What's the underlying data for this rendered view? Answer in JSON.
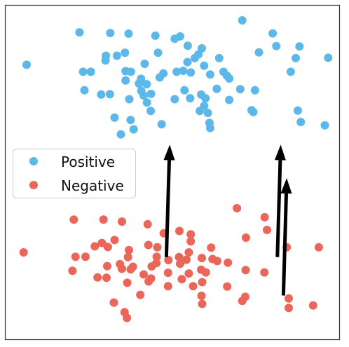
{
  "chart_data": {
    "type": "scatter",
    "xlim": [
      0,
      1
    ],
    "ylim": [
      0,
      1
    ],
    "grid": false,
    "legend": {
      "placement": "center-left",
      "entries": [
        "Positive",
        "Negative"
      ]
    },
    "colors": {
      "Positive": "#5DB8EA",
      "Negative": "#EA6659",
      "arrow": "#000000",
      "frame": "#333333"
    },
    "series": [
      {
        "name": "Positive",
        "points": [
          [
            0.222,
            0.919
          ],
          [
            0.314,
            0.917
          ],
          [
            0.369,
            0.915
          ],
          [
            0.449,
            0.909
          ],
          [
            0.507,
            0.9
          ],
          [
            0.523,
            0.907
          ],
          [
            0.709,
            0.955
          ],
          [
            0.8,
            0.916
          ],
          [
            0.546,
            0.879
          ],
          [
            0.588,
            0.871
          ],
          [
            0.811,
            0.878
          ],
          [
            0.88,
            0.877
          ],
          [
            0.759,
            0.859
          ],
          [
            0.358,
            0.858
          ],
          [
            0.457,
            0.858
          ],
          [
            0.578,
            0.853
          ],
          [
            0.301,
            0.849
          ],
          [
            0.334,
            0.849
          ],
          [
            0.567,
            0.842
          ],
          [
            0.64,
            0.842
          ],
          [
            0.869,
            0.842
          ],
          [
            0.966,
            0.843
          ],
          [
            0.3,
            0.835
          ],
          [
            0.545,
            0.83
          ],
          [
            0.417,
            0.825
          ],
          [
            0.595,
            0.819
          ],
          [
            0.064,
            0.822
          ],
          [
            0.233,
            0.801
          ],
          [
            0.256,
            0.801
          ],
          [
            0.36,
            0.803
          ],
          [
            0.513,
            0.801
          ],
          [
            0.532,
            0.804
          ],
          [
            0.555,
            0.799
          ],
          [
            0.653,
            0.801
          ],
          [
            0.854,
            0.801
          ],
          [
            0.376,
            0.801
          ],
          [
            0.473,
            0.796
          ],
          [
            0.613,
            0.793
          ],
          [
            0.663,
            0.789
          ],
          [
            0.462,
            0.784
          ],
          [
            0.406,
            0.78
          ],
          [
            0.67,
            0.781
          ],
          [
            0.36,
            0.775
          ],
          [
            0.237,
            0.746
          ],
          [
            0.4,
            0.766
          ],
          [
            0.423,
            0.764
          ],
          [
            0.633,
            0.75
          ],
          [
            0.703,
            0.749
          ],
          [
            0.747,
            0.746
          ],
          [
            0.287,
            0.733
          ],
          [
            0.313,
            0.734
          ],
          [
            0.407,
            0.744
          ],
          [
            0.436,
            0.735
          ],
          [
            0.536,
            0.746
          ],
          [
            0.586,
            0.733
          ],
          [
            0.414,
            0.73
          ],
          [
            0.371,
            0.719
          ],
          [
            0.553,
            0.722
          ],
          [
            0.599,
            0.722
          ],
          [
            0.507,
            0.719
          ],
          [
            0.67,
            0.717
          ],
          [
            0.424,
            0.709
          ],
          [
            0.595,
            0.699
          ],
          [
            0.435,
            0.684
          ],
          [
            0.582,
            0.684
          ],
          [
            0.737,
            0.686
          ],
          [
            0.875,
            0.685
          ],
          [
            0.606,
            0.678
          ],
          [
            0.742,
            0.681
          ],
          [
            0.327,
            0.664
          ],
          [
            0.375,
            0.657
          ],
          [
            0.384,
            0.629
          ],
          [
            0.468,
            0.644
          ],
          [
            0.611,
            0.648
          ],
          [
            0.884,
            0.651
          ],
          [
            0.956,
            0.641
          ],
          [
            0.346,
            0.614
          ],
          [
            0.613,
            0.633
          ]
        ]
      },
      {
        "name": "Negative",
        "points": [
          [
            0.205,
            0.359
          ],
          [
            0.693,
            0.393
          ],
          [
            0.294,
            0.359
          ],
          [
            0.349,
            0.353
          ],
          [
            0.776,
            0.366
          ],
          [
            0.426,
            0.345
          ],
          [
            0.783,
            0.328
          ],
          [
            0.521,
            0.325
          ],
          [
            0.474,
            0.318
          ],
          [
            0.555,
            0.315
          ],
          [
            0.72,
            0.305
          ],
          [
            0.327,
            0.298
          ],
          [
            0.289,
            0.289
          ],
          [
            0.268,
            0.279
          ],
          [
            0.307,
            0.277
          ],
          [
            0.555,
            0.294
          ],
          [
            0.428,
            0.283
          ],
          [
            0.455,
            0.276
          ],
          [
            0.616,
            0.275
          ],
          [
            0.938,
            0.276
          ],
          [
            0.842,
            0.276
          ],
          [
            0.37,
            0.268
          ],
          [
            0.549,
            0.261
          ],
          [
            0.453,
            0.248
          ],
          [
            0.055,
            0.261
          ],
          [
            0.21,
            0.248
          ],
          [
            0.24,
            0.248
          ],
          [
            0.367,
            0.247
          ],
          [
            0.52,
            0.247
          ],
          [
            0.588,
            0.244
          ],
          [
            0.62,
            0.241
          ],
          [
            0.488,
            0.238
          ],
          [
            0.542,
            0.239
          ],
          [
            0.634,
            0.235
          ],
          [
            0.523,
            0.227
          ],
          [
            0.343,
            0.226
          ],
          [
            0.452,
            0.229
          ],
          [
            0.666,
            0.23
          ],
          [
            0.305,
            0.22
          ],
          [
            0.382,
            0.218
          ],
          [
            0.438,
            0.219
          ],
          [
            0.349,
            0.212
          ],
          [
            0.201,
            0.206
          ],
          [
            0.375,
            0.21
          ],
          [
            0.586,
            0.209
          ],
          [
            0.487,
            0.2
          ],
          [
            0.549,
            0.198
          ],
          [
            0.6,
            0.201
          ],
          [
            0.775,
            0.201
          ],
          [
            0.719,
            0.208
          ],
          [
            0.414,
            0.195
          ],
          [
            0.436,
            0.183
          ],
          [
            0.276,
            0.186
          ],
          [
            0.303,
            0.185
          ],
          [
            0.528,
            0.181
          ],
          [
            0.429,
            0.174
          ],
          [
            0.589,
            0.172
          ],
          [
            0.365,
            0.17
          ],
          [
            0.487,
            0.16
          ],
          [
            0.562,
            0.16
          ],
          [
            0.664,
            0.159
          ],
          [
            0.404,
            0.134
          ],
          [
            0.587,
            0.131
          ],
          [
            0.718,
            0.128
          ],
          [
            0.848,
            0.123
          ],
          [
            0.325,
            0.111
          ],
          [
            0.589,
            0.107
          ],
          [
            0.709,
            0.116
          ],
          [
            0.921,
            0.102
          ],
          [
            0.848,
            0.095
          ],
          [
            0.357,
            0.082
          ],
          [
            0.364,
            0.065
          ]
        ]
      }
    ],
    "arrows": [
      {
        "from": [
          0.482,
          0.247
        ],
        "to": [
          0.492,
          0.583
        ]
      },
      {
        "from": [
          0.814,
          0.247
        ],
        "to": [
          0.824,
          0.583
        ]
      },
      {
        "from": [
          0.832,
          0.132
        ],
        "to": [
          0.842,
          0.483
        ]
      }
    ]
  }
}
